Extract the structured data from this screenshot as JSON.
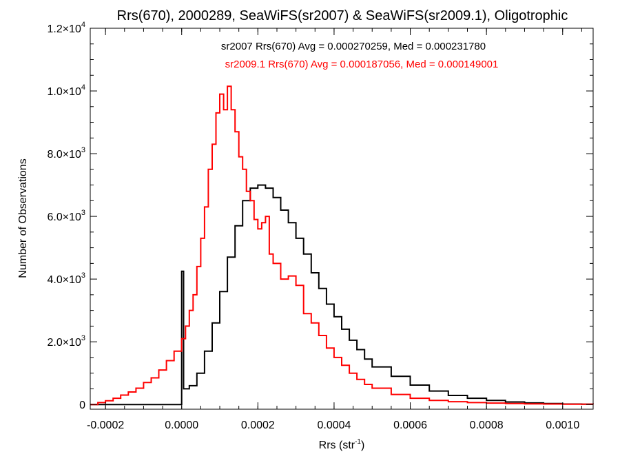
{
  "chart_data": {
    "type": "histogram",
    "title": "Rrs(670), 2000289, SeaWiFS(sr2007) & SeaWiFS(sr2009.1), Oligotrophic",
    "xlabel": "Rrs (str",
    "xlabel_sup": "-1",
    "xlabel_end": ")",
    "ylabel": "Number of Observations",
    "xlim": [
      -0.00024,
      0.00108
    ],
    "ylim": [
      -150,
      12000
    ],
    "grid": false,
    "x_ticks": [
      {
        "value": -0.0002,
        "label": "-0.0002"
      },
      {
        "value": 0.0,
        "label": "0.0000"
      },
      {
        "value": 0.0002,
        "label": "0.0002"
      },
      {
        "value": 0.0004,
        "label": "0.0004"
      },
      {
        "value": 0.0006,
        "label": "0.0006"
      },
      {
        "value": 0.0008,
        "label": "0.0008"
      },
      {
        "value": 0.001,
        "label": "0.0010"
      }
    ],
    "y_ticks": [
      {
        "value": 0,
        "mant": "0",
        "exp": ""
      },
      {
        "value": 2000,
        "mant": "2.0×10",
        "exp": "3"
      },
      {
        "value": 4000,
        "mant": "4.0×10",
        "exp": "3"
      },
      {
        "value": 6000,
        "mant": "6.0×10",
        "exp": "3"
      },
      {
        "value": 8000,
        "mant": "8.0×10",
        "exp": "3"
      },
      {
        "value": 10000,
        "mant": "1.0×10",
        "exp": "4"
      },
      {
        "value": 12000,
        "mant": "1.2×10",
        "exp": "4"
      }
    ],
    "annotations": [
      {
        "text": "sr2007 Rrs(670) Avg = 0.000270259, Med = 0.000231780",
        "color": "#000000"
      },
      {
        "text": "sr2009.1 Rrs(670) Avg = 0.000187056, Med = 0.000149001",
        "color": "#ff0000"
      }
    ],
    "series": [
      {
        "color": "#000000",
        "points": [
          [
            -0.00024,
            0
          ],
          [
            0.0,
            0
          ],
          [
            0.0,
            4250
          ],
          [
            5e-06,
            4250
          ],
          [
            5e-06,
            500
          ],
          [
            2e-05,
            600
          ],
          [
            4e-05,
            1000
          ],
          [
            6e-05,
            1700
          ],
          [
            8e-05,
            2600
          ],
          [
            0.0001,
            3600
          ],
          [
            0.00012,
            4700
          ],
          [
            0.00014,
            5700
          ],
          [
            0.00016,
            6500
          ],
          [
            0.00018,
            6900
          ],
          [
            0.0002,
            7000
          ],
          [
            0.00022,
            6900
          ],
          [
            0.00024,
            6600
          ],
          [
            0.00026,
            6200
          ],
          [
            0.00028,
            5800
          ],
          [
            0.0003,
            5300
          ],
          [
            0.00032,
            4800
          ],
          [
            0.00034,
            4200
          ],
          [
            0.00036,
            3700
          ],
          [
            0.00038,
            3200
          ],
          [
            0.0004,
            2800
          ],
          [
            0.00042,
            2400
          ],
          [
            0.00044,
            2050
          ],
          [
            0.00046,
            1750
          ],
          [
            0.00048,
            1450
          ],
          [
            0.0005,
            1200
          ],
          [
            0.00055,
            900
          ],
          [
            0.0006,
            620
          ],
          [
            0.00065,
            430
          ],
          [
            0.0007,
            290
          ],
          [
            0.00075,
            200
          ],
          [
            0.0008,
            130
          ],
          [
            0.00085,
            80
          ],
          [
            0.0009,
            50
          ],
          [
            0.00095,
            30
          ],
          [
            0.001,
            15
          ],
          [
            0.00105,
            8
          ],
          [
            0.00108,
            5
          ]
        ]
      },
      {
        "color": "#ff0000",
        "points": [
          [
            -0.00024,
            0
          ],
          [
            -0.00022,
            60
          ],
          [
            -0.0002,
            120
          ],
          [
            -0.00018,
            200
          ],
          [
            -0.00016,
            300
          ],
          [
            -0.00014,
            400
          ],
          [
            -0.00012,
            520
          ],
          [
            -0.0001,
            700
          ],
          [
            -8e-05,
            850
          ],
          [
            -6e-05,
            1100
          ],
          [
            -4e-05,
            1400
          ],
          [
            -2e-05,
            1700
          ],
          [
            0.0,
            2100
          ],
          [
            1e-05,
            2500
          ],
          [
            2e-05,
            3000
          ],
          [
            3e-05,
            3500
          ],
          [
            4e-05,
            4400
          ],
          [
            5e-05,
            5300
          ],
          [
            6e-05,
            6300
          ],
          [
            7e-05,
            7500
          ],
          [
            8e-05,
            8300
          ],
          [
            9e-05,
            9300
          ],
          [
            0.0001,
            9900
          ],
          [
            0.00011,
            9400
          ],
          [
            0.00012,
            10150
          ],
          [
            0.00013,
            9400
          ],
          [
            0.00014,
            8700
          ],
          [
            0.00015,
            7900
          ],
          [
            0.00016,
            7500
          ],
          [
            0.00017,
            6800
          ],
          [
            0.00018,
            6500
          ],
          [
            0.00019,
            5900
          ],
          [
            0.0002,
            5600
          ],
          [
            0.00021,
            5800
          ],
          [
            0.00022,
            6000
          ],
          [
            0.00023,
            4800
          ],
          [
            0.00024,
            4500
          ],
          [
            0.00026,
            4000
          ],
          [
            0.00028,
            4100
          ],
          [
            0.0003,
            3800
          ],
          [
            0.00032,
            2900
          ],
          [
            0.00034,
            2600
          ],
          [
            0.00036,
            2200
          ],
          [
            0.00038,
            1800
          ],
          [
            0.0004,
            1500
          ],
          [
            0.00042,
            1250
          ],
          [
            0.00044,
            1000
          ],
          [
            0.00046,
            800
          ],
          [
            0.00048,
            640
          ],
          [
            0.0005,
            520
          ],
          [
            0.00055,
            320
          ],
          [
            0.0006,
            200
          ],
          [
            0.00065,
            130
          ],
          [
            0.0007,
            90
          ],
          [
            0.00075,
            60
          ],
          [
            0.0008,
            45
          ],
          [
            0.00085,
            30
          ],
          [
            0.0009,
            22
          ],
          [
            0.00095,
            15
          ],
          [
            0.001,
            10
          ],
          [
            0.00108,
            5
          ]
        ]
      }
    ]
  }
}
